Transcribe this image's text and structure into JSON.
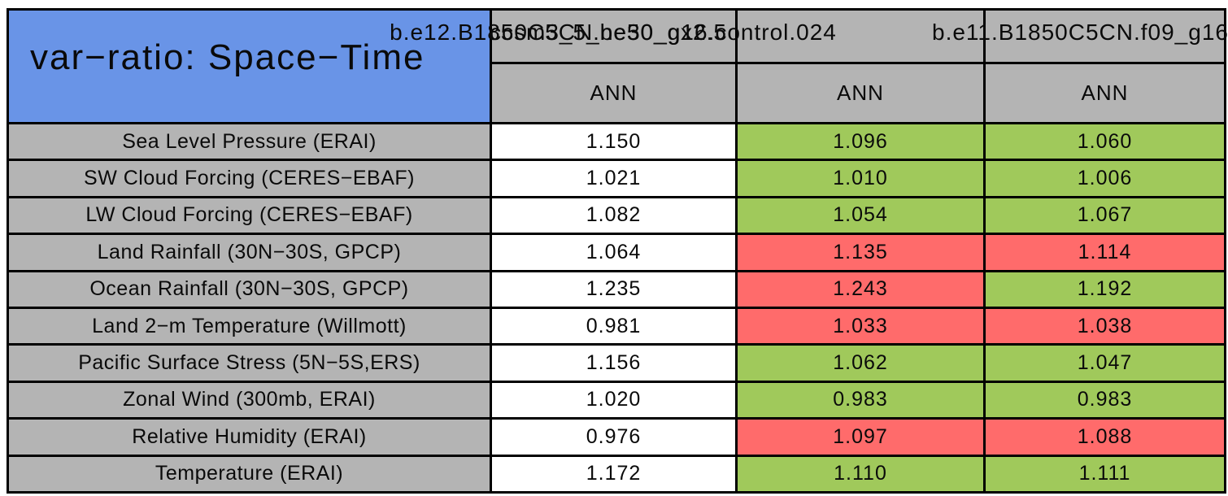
{
  "title": "var−ratio: Space−Time",
  "header": {
    "case_labels": [
      "b.e12.B1850C5CN.ne30_g16.control.024",
      "ccsm3_5_be50_gx2.5",
      "b.e11.B1850C5CN.f09_g16"
    ],
    "season_labels": [
      "ANN",
      "ANN",
      "ANN"
    ]
  },
  "colors": {
    "header_gray": "#b4b4b4",
    "title_blue": "#6994e7",
    "better_green": "#a0c95b",
    "worse_red": "#ff6b6b",
    "cell_white": "#ffffff",
    "border_black": "#000000"
  },
  "chart_data": {
    "type": "table",
    "title": "var−ratio: Space−Time",
    "season": "ANN",
    "columns": [
      "b.e12.B1850C5CN.ne30_g16.control.024",
      "ccsm3_5_be50_gx2.5",
      "b.e11.B1850C5CN.f09_g16"
    ],
    "rows": [
      {
        "label": "Sea Level Pressure (ERAI)",
        "values": [
          "1.150",
          "1.096",
          "1.060"
        ],
        "colors": [
          "white",
          "green",
          "green"
        ]
      },
      {
        "label": "SW Cloud Forcing (CERES−EBAF)",
        "values": [
          "1.021",
          "1.010",
          "1.006"
        ],
        "colors": [
          "white",
          "green",
          "green"
        ]
      },
      {
        "label": "LW Cloud Forcing (CERES−EBAF)",
        "values": [
          "1.082",
          "1.054",
          "1.067"
        ],
        "colors": [
          "white",
          "green",
          "green"
        ]
      },
      {
        "label": "Land Rainfall (30N−30S, GPCP)",
        "values": [
          "1.064",
          "1.135",
          "1.114"
        ],
        "colors": [
          "white",
          "red",
          "red"
        ]
      },
      {
        "label": "Ocean Rainfall (30N−30S, GPCP)",
        "values": [
          "1.235",
          "1.243",
          "1.192"
        ],
        "colors": [
          "white",
          "red",
          "green"
        ]
      },
      {
        "label": "Land 2−m Temperature (Willmott)",
        "values": [
          "0.981",
          "1.033",
          "1.038"
        ],
        "colors": [
          "white",
          "red",
          "red"
        ]
      },
      {
        "label": "Pacific Surface Stress (5N−5S,ERS)",
        "values": [
          "1.156",
          "1.062",
          "1.047"
        ],
        "colors": [
          "white",
          "green",
          "green"
        ]
      },
      {
        "label": "Zonal Wind (300mb, ERAI)",
        "values": [
          "1.020",
          "0.983",
          "0.983"
        ],
        "colors": [
          "white",
          "green",
          "green"
        ]
      },
      {
        "label": "Relative Humidity (ERAI)",
        "values": [
          "0.976",
          "1.097",
          "1.088"
        ],
        "colors": [
          "white",
          "red",
          "red"
        ]
      },
      {
        "label": "Temperature (ERAI)",
        "values": [
          "1.172",
          "1.110",
          "1.111"
        ],
        "colors": [
          "white",
          "green",
          "green"
        ]
      }
    ]
  }
}
